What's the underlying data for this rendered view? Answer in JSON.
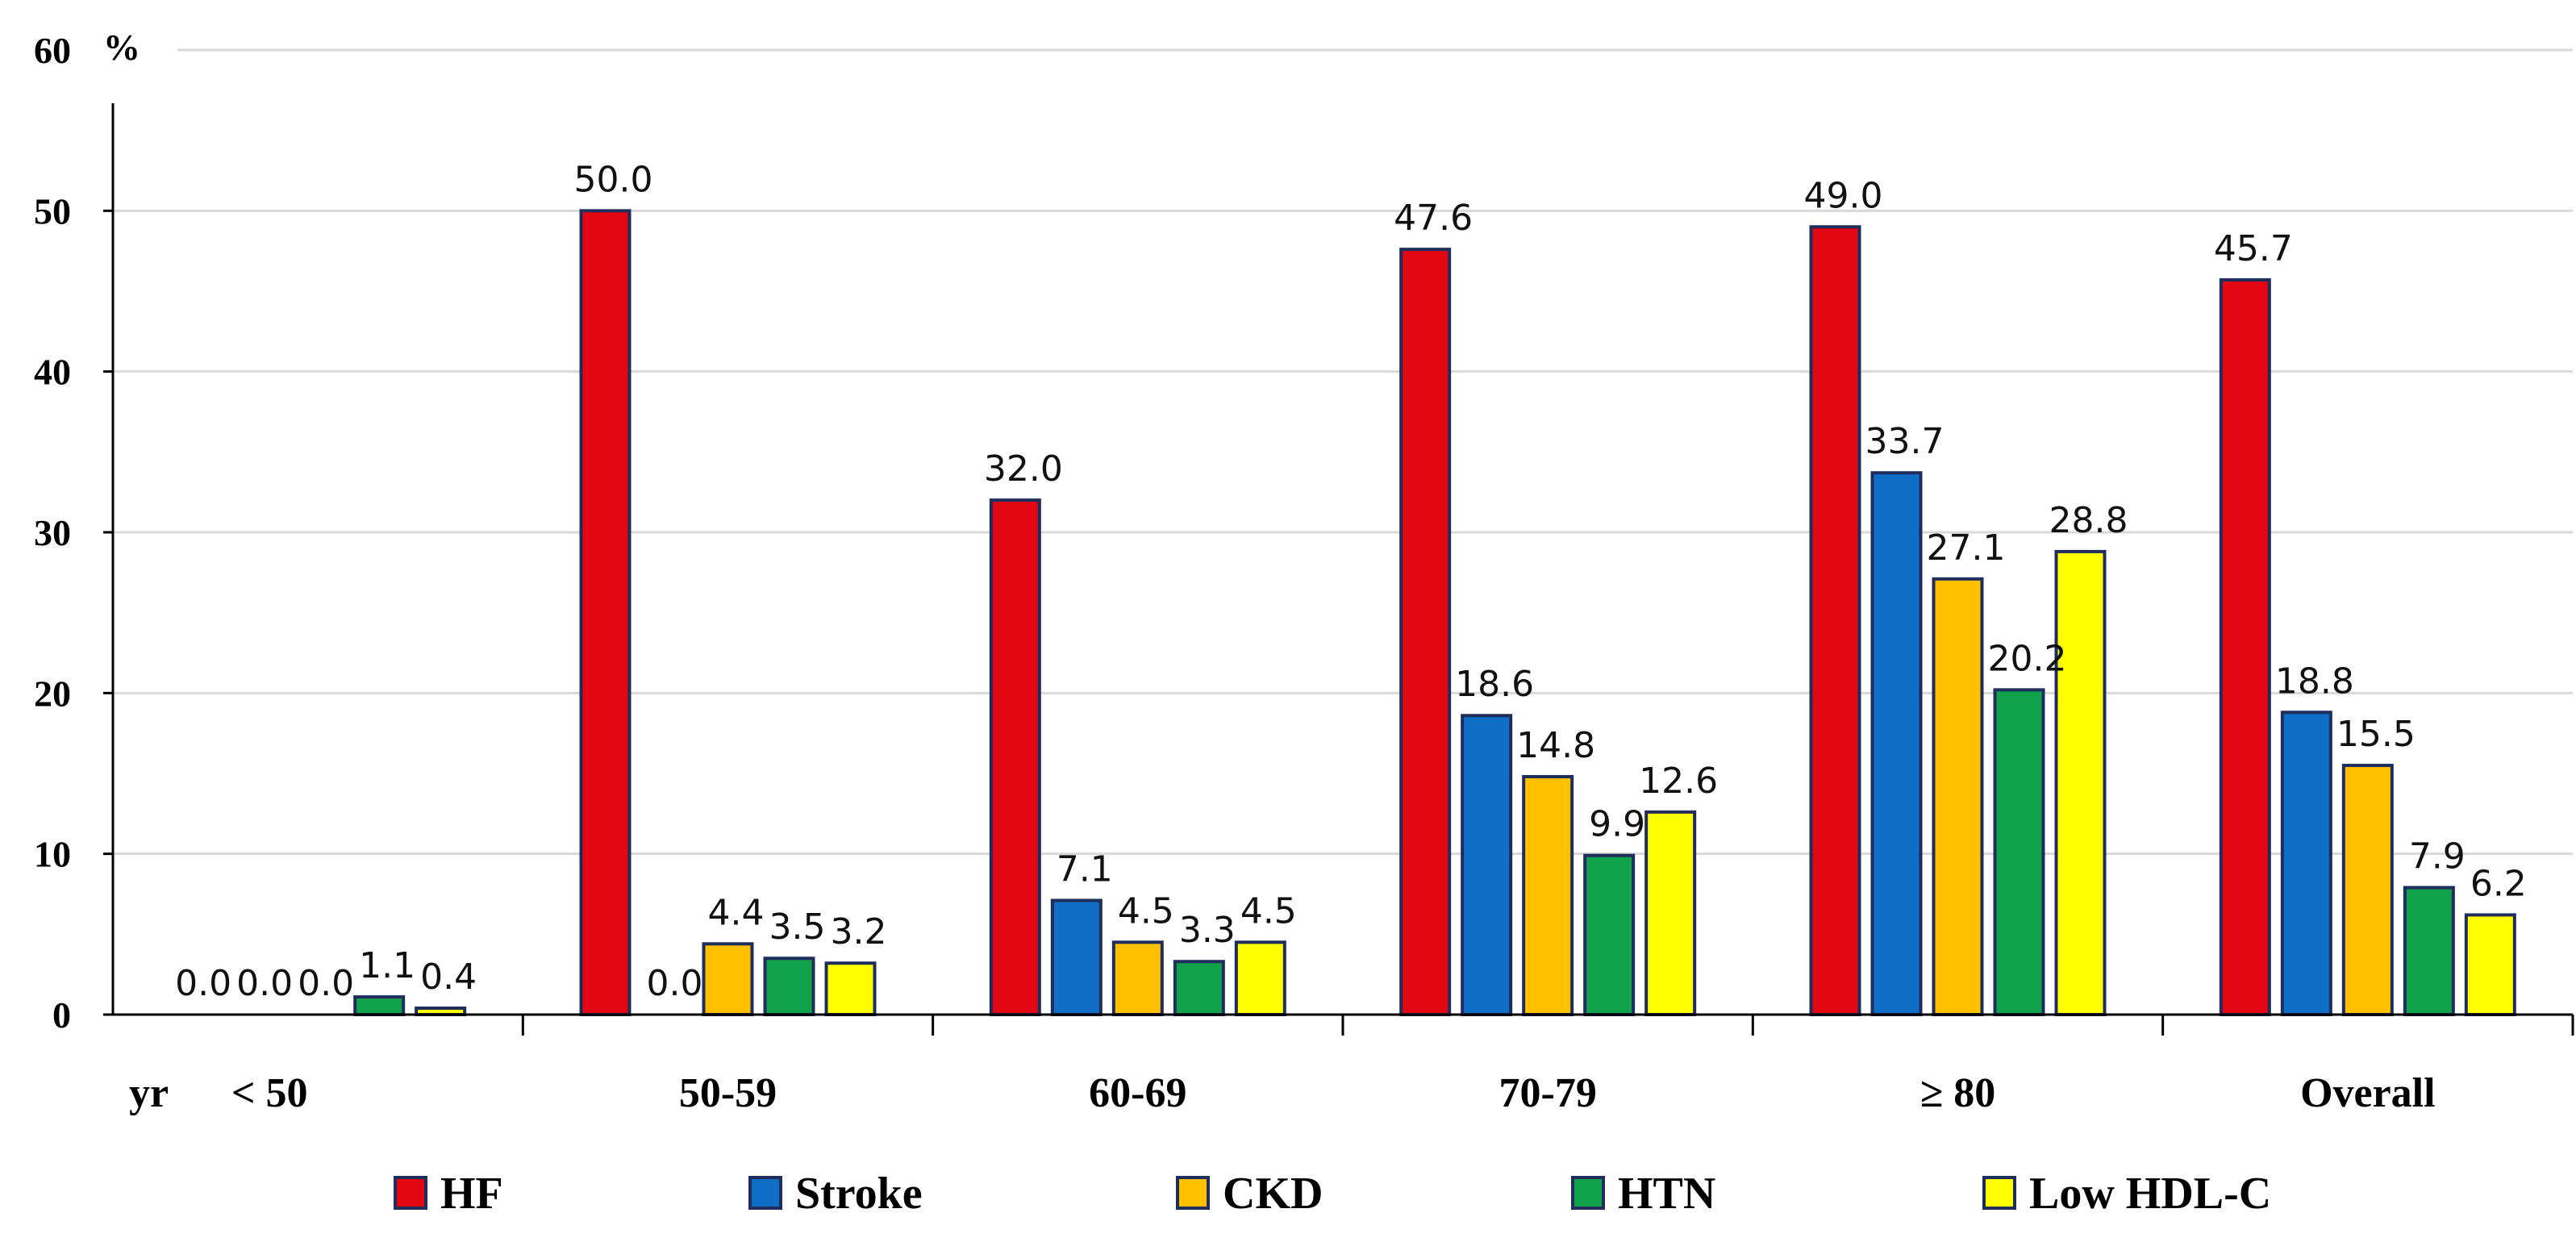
{
  "chart_data": {
    "type": "bar",
    "title": "",
    "xlabel": "yr",
    "ylabel": "%",
    "ylim": [
      0,
      60
    ],
    "yticks": [
      0,
      10,
      20,
      30,
      40,
      50,
      60
    ],
    "ytick_labels": [
      "0",
      "10",
      "20",
      "30",
      "40",
      "50",
      "60"
    ],
    "grid": true,
    "categories": [
      "< 50",
      "50-59",
      "60-69",
      "70-79",
      "≥ 80",
      "Overall"
    ],
    "series": [
      {
        "name": "HF",
        "color": "#E30613",
        "values": [
          0.0,
          50.0,
          32.0,
          47.6,
          49.0,
          45.7
        ],
        "labels": [
          "0.0",
          "50.0",
          "32.0",
          "47.6",
          "49.0",
          "45.7"
        ]
      },
      {
        "name": "Stroke",
        "color": "#0F6FC6",
        "values": [
          0.0,
          0.0,
          7.1,
          18.6,
          33.7,
          18.8
        ],
        "labels": [
          "0.0",
          "0.0",
          "7.1",
          "18.6",
          "33.7",
          "18.8"
        ]
      },
      {
        "name": "CKD",
        "color": "#FFC000",
        "values": [
          0.0,
          4.4,
          4.5,
          14.8,
          27.1,
          15.5
        ],
        "labels": [
          "0.0",
          "4.4",
          "4.5",
          "14.8",
          "27.1",
          "15.5"
        ]
      },
      {
        "name": "HTN",
        "color": "#12A14B",
        "values": [
          1.1,
          3.5,
          3.3,
          9.9,
          20.2,
          7.9
        ],
        "labels": [
          "1.1",
          "3.5",
          "3.3",
          "9.9",
          "20.2",
          "7.9"
        ]
      },
      {
        "name": "Low HDL-C",
        "color": "#FFFF00",
        "values": [
          0.4,
          3.2,
          4.5,
          12.6,
          28.8,
          6.2
        ],
        "labels": [
          "0.4",
          "3.2",
          "4.5",
          "12.6",
          "28.8",
          "6.2"
        ]
      }
    ],
    "legend_position": "bottom"
  }
}
